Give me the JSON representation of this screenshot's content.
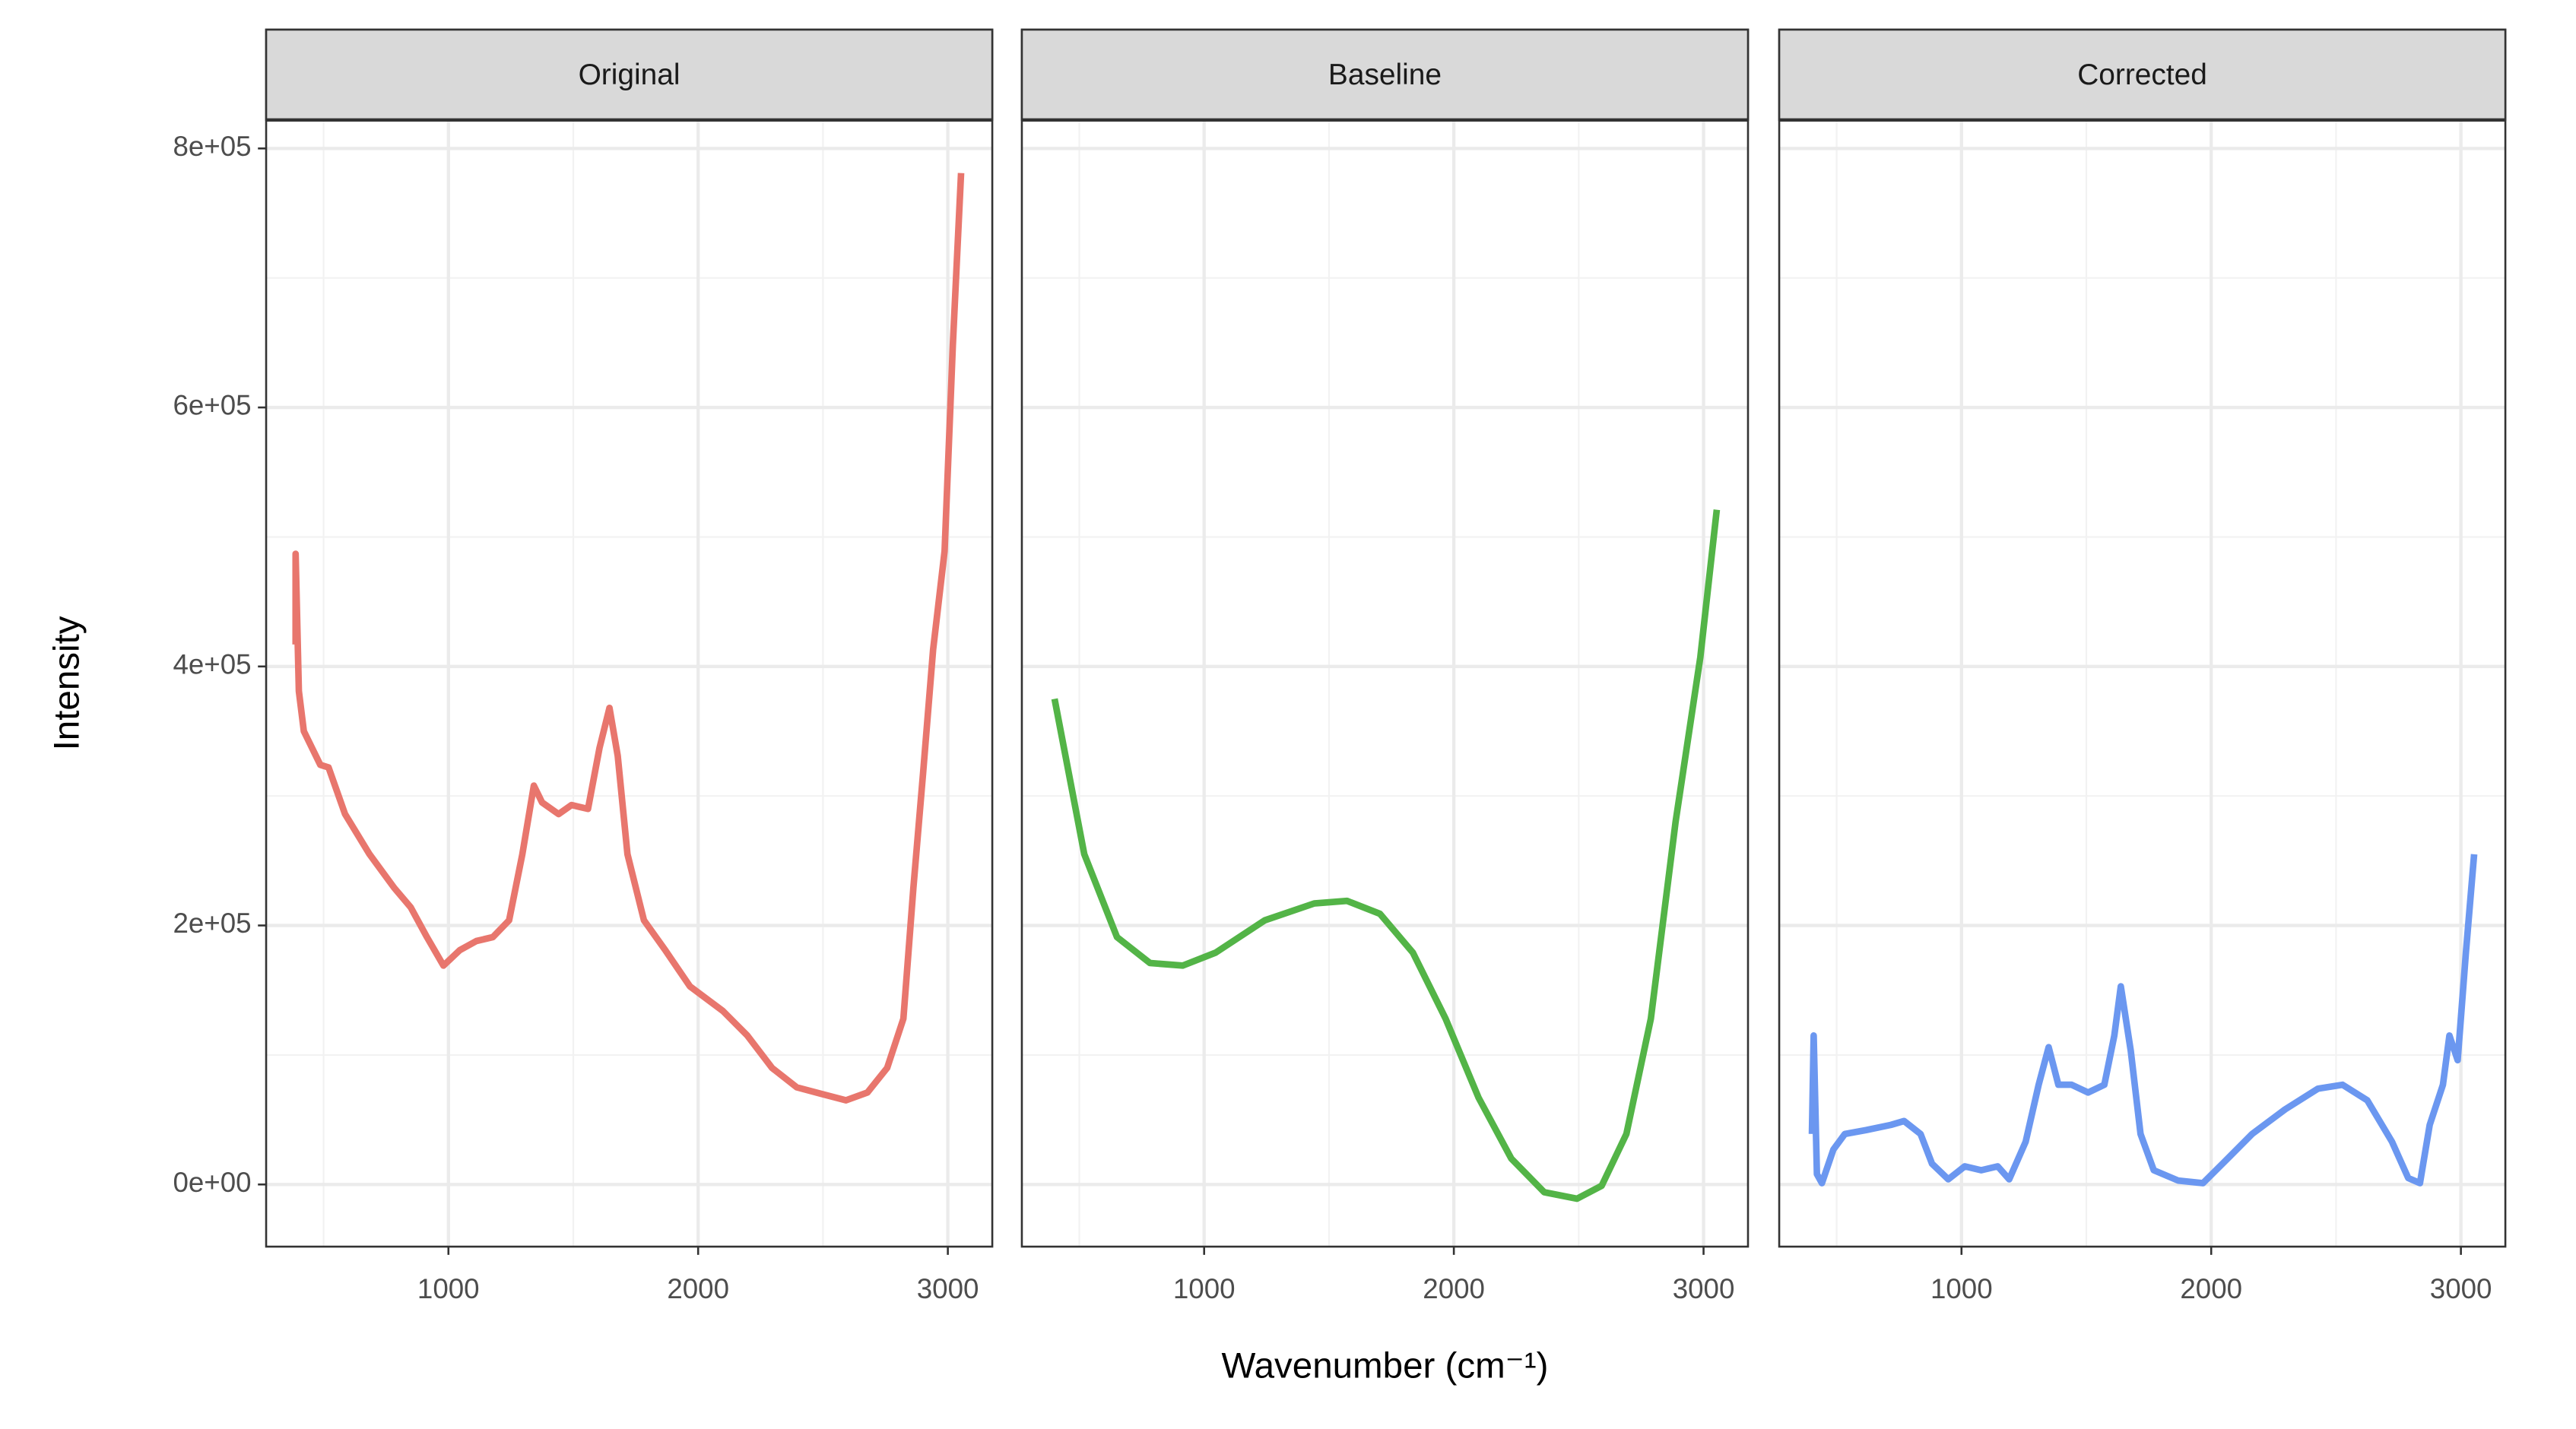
{
  "labels": {
    "x": "Wavenumber (cm⁻¹)",
    "y": "Intensity"
  },
  "chart_data": [
    {
      "type": "line",
      "title": "Original",
      "color": "#e8766d",
      "x": [
        388,
        388,
        401,
        421,
        487,
        520,
        586,
        684,
        783,
        849,
        914,
        980,
        1046,
        1112,
        1178,
        1243,
        1296,
        1342,
        1375,
        1441,
        1493,
        1559,
        1605,
        1645,
        1678,
        1717,
        1783,
        1868,
        1967,
        2099,
        2197,
        2296,
        2395,
        2493,
        2592,
        2678,
        2757,
        2822,
        2862,
        2901,
        2941,
        2987,
        3020,
        3053
      ],
      "values": [
        417000,
        487000,
        381000,
        350000,
        324000,
        322000,
        286000,
        255000,
        229000,
        214000,
        191000,
        169000,
        181000,
        188000,
        191000,
        204000,
        255000,
        308000,
        295000,
        286000,
        293000,
        290000,
        337000,
        368000,
        331000,
        255000,
        204000,
        181000,
        153000,
        134000,
        115000,
        90000,
        75000,
        70000,
        65000,
        71000,
        90000,
        128000,
        229000,
        318000,
        413000,
        489000,
        648000,
        781000
      ],
      "xlim": [
        270,
        3178
      ],
      "xticks": [
        1000,
        2000,
        3000
      ],
      "x_minor_ticks": [
        500,
        1500,
        2500
      ],
      "ylim": [
        -48000,
        822000
      ],
      "yticks": [
        {
          "value": 0,
          "label": "0e+00"
        },
        {
          "value": 200000,
          "label": "2e+05"
        },
        {
          "value": 400000,
          "label": "4e+05"
        },
        {
          "value": 600000,
          "label": "6e+05"
        },
        {
          "value": 800000,
          "label": "8e+05"
        }
      ],
      "y_minor_ticks": [
        100000,
        300000,
        500000,
        700000
      ],
      "grid": true
    },
    {
      "type": "line",
      "title": "Baseline",
      "color": "#53b447",
      "x": [
        401,
        520,
        651,
        783,
        914,
        1046,
        1243,
        1441,
        1572,
        1704,
        1836,
        1967,
        2099,
        2230,
        2362,
        2493,
        2592,
        2691,
        2789,
        2888,
        2987,
        3053
      ],
      "values": [
        375000,
        255000,
        191000,
        171000,
        169000,
        179000,
        204000,
        217000,
        219000,
        209000,
        179000,
        128000,
        67000,
        20000,
        -6000,
        -11000,
        -1000,
        39000,
        128000,
        280000,
        407000,
        521000
      ],
      "xlim": [
        270,
        3178
      ],
      "xticks": [
        1000,
        2000,
        3000
      ],
      "x_minor_ticks": [
        500,
        1500,
        2500
      ],
      "ylim": [
        -48000,
        822000
      ],
      "yticks": [
        0,
        200000,
        400000,
        600000,
        800000
      ],
      "y_minor_ticks": [
        100000,
        300000,
        500000,
        700000
      ],
      "grid": true
    },
    {
      "type": "line",
      "title": "Corrected",
      "color": "#6b97f0",
      "x": [
        401,
        408,
        421,
        441,
        487,
        533,
        618,
        717,
        770,
        836,
        882,
        947,
        1013,
        1079,
        1145,
        1191,
        1257,
        1309,
        1349,
        1388,
        1441,
        1507,
        1572,
        1612,
        1638,
        1678,
        1717,
        1770,
        1868,
        1967,
        2066,
        2164,
        2296,
        2428,
        2526,
        2625,
        2724,
        2789,
        2836,
        2875,
        2928,
        2954,
        2987,
        3020,
        3053
      ],
      "values": [
        39000,
        115000,
        8000,
        1000,
        27000,
        39000,
        42000,
        46000,
        49000,
        39000,
        16000,
        4000,
        14000,
        11000,
        14000,
        4000,
        33000,
        77000,
        106000,
        77000,
        77000,
        71000,
        77000,
        115000,
        153000,
        103000,
        39000,
        11000,
        3000,
        1000,
        20000,
        39000,
        58000,
        74000,
        77000,
        65000,
        33000,
        5000,
        1000,
        46000,
        77000,
        115000,
        96000,
        179000,
        255000
      ],
      "xlim": [
        270,
        3178
      ],
      "xticks": [
        1000,
        2000,
        3000
      ],
      "x_minor_ticks": [
        500,
        1500,
        2500
      ],
      "ylim": [
        -48000,
        822000
      ],
      "yticks": [
        0,
        200000,
        400000,
        600000,
        800000
      ],
      "y_minor_ticks": [
        100000,
        300000,
        500000,
        700000
      ],
      "grid": true
    }
  ]
}
